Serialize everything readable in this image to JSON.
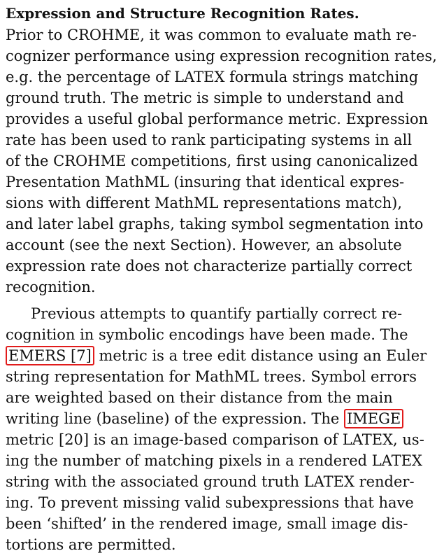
{
  "document": {
    "heading": "Expression and Structure Recognition Rates.",
    "paragraph1_lines": [
      "Prior to CROHME, it was common to evaluate math re-",
      "cognizer performance using expression recognition rates,",
      "e.g. the percentage of LATEX formula strings matching",
      "ground truth. The metric is simple to understand and",
      "provides a useful global performance metric. Expression",
      "rate has been used to rank participating systems in all",
      "of the CROHME competitions, first using canonicalized",
      "Presentation MathML (insuring that identical expres-",
      "sions with different MathML representations match),",
      "and later label graphs, taking symbol segmentation into",
      "account (see the next Section). However, an absolute",
      "expression rate does not characterize partially correct",
      "recognition."
    ],
    "paragraph2": {
      "line1": "Previous attempts to quantify partially correct re-",
      "line2": "cognition in symbolic encodings have been made. The",
      "line3_highlight": "EMERS [7]",
      "line3_rest": "metric is a tree edit distance using an Euler",
      "line4": "string representation for MathML trees. Symbol errors",
      "line5": "are weighted based on their distance from the main",
      "line6_start": "writing line (baseline) of the expression. The",
      "line6_highlight": "IMEGE",
      "line7": "metric [20] is an image-based comparison of LATEX, us-",
      "line8": "ing the number of matching pixels in a rendered LATEX",
      "line9": "string with the associated ground truth LATEX render-",
      "line10": "ing. To prevent missing valid subexpressions that have",
      "line11": "been ‘shifted’ in the rendered image, small image dis-",
      "line12": "tortions are permitted."
    },
    "highlight_color": "#e11b1b"
  }
}
